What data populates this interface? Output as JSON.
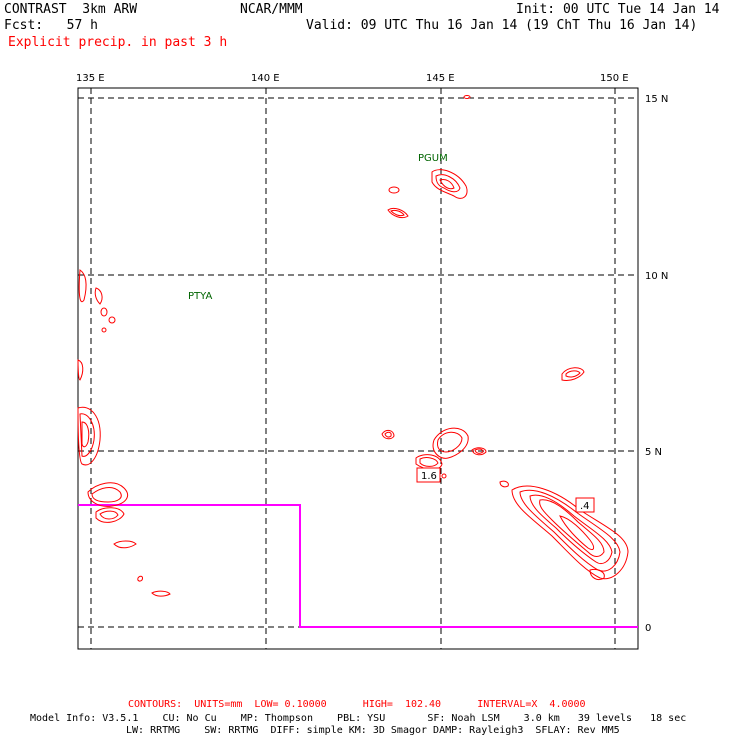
{
  "header": {
    "model_name": "CONTRAST  3km ARW",
    "org": "NCAR/MMM",
    "init": "Init: 00 UTC Tue 14 Jan 14",
    "fcst": "Fcst:   57 h",
    "valid": "Valid: 09 UTC Thu 16 Jan 14 (19 ChT Thu 16 Jan 14)",
    "field": "Explicit precip. in past 3 h"
  },
  "map": {
    "lon_labels": [
      "135 E",
      "140 E",
      "145 E",
      "150 E"
    ],
    "lat_labels": [
      "15 N",
      "10 N",
      "5 N",
      "0"
    ],
    "stations": [
      "PGUM",
      "PTYA"
    ],
    "max_labels": [
      "1.6",
      ".4"
    ],
    "contour_color": "#ff0000",
    "boundary_color": "#ff00ff",
    "station_color": "#006400"
  },
  "footer": {
    "contours": "CONTOURS:  UNITS=mm  LOW= 0.10000      HIGH=  102.40      INTERVAL=X  4.0000",
    "model_info_1": "Model Info: V3.5.1    CU: No Cu    MP: Thompson    PBL: YSU       SF: Noah LSM    3.0 km   39 levels   18 sec",
    "model_info_2": "LW: RRTMG    SW: RRTMG  DIFF: simple KM: 3D Smagor DAMP: Rayleigh3  SFLAY: Rev MM5"
  }
}
